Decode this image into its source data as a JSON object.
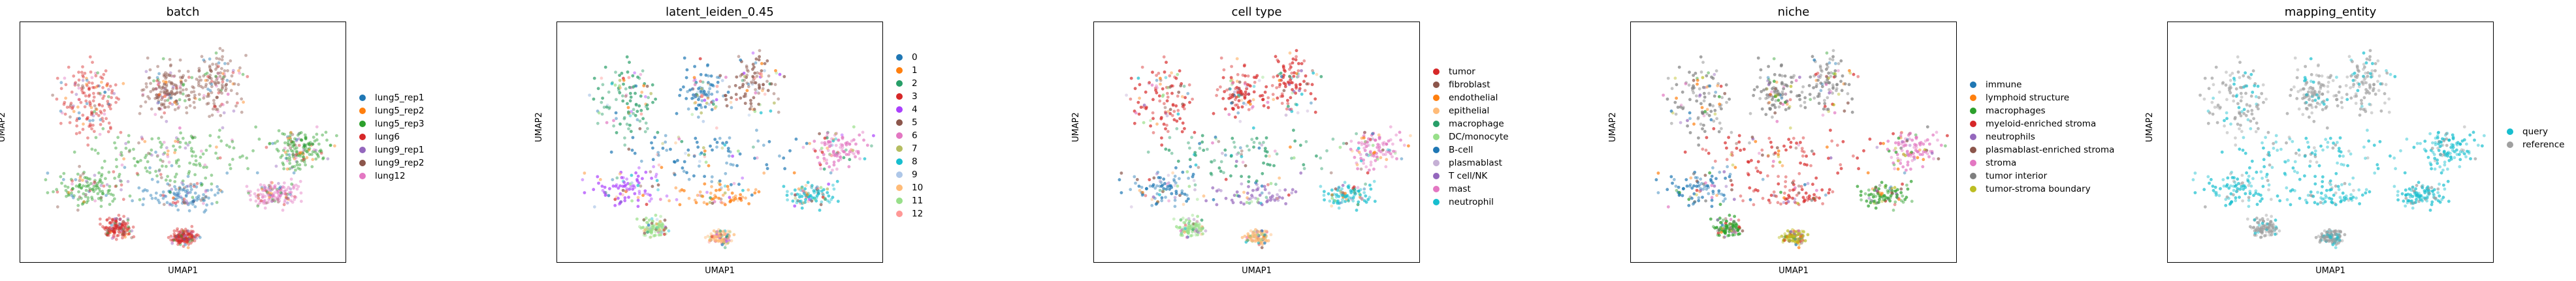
{
  "chart_data": [
    {
      "type": "scatter",
      "title": "batch",
      "xlabel": "UMAP1",
      "ylabel": "UMAP2",
      "legend_position": "right",
      "series": [
        {
          "name": "lung5_rep1",
          "color": "#1f77b4"
        },
        {
          "name": "lung5_rep2",
          "color": "#ff7f0e"
        },
        {
          "name": "lung5_rep3",
          "color": "#2ca02c"
        },
        {
          "name": "lung6",
          "color": "#d62728"
        },
        {
          "name": "lung9_rep1",
          "color": "#9467bd"
        },
        {
          "name": "lung9_rep2",
          "color": "#8c564b"
        },
        {
          "name": "lung12",
          "color": "#e377c2"
        }
      ]
    },
    {
      "type": "scatter",
      "title": "latent_leiden_0.45",
      "xlabel": "UMAP1",
      "ylabel": "UMAP2",
      "legend_position": "right",
      "series": [
        {
          "name": "0",
          "color": "#1f77b4"
        },
        {
          "name": "1",
          "color": "#ff7f0e"
        },
        {
          "name": "2",
          "color": "#279e68"
        },
        {
          "name": "3",
          "color": "#d62728"
        },
        {
          "name": "4",
          "color": "#aa40fc"
        },
        {
          "name": "5",
          "color": "#8c564b"
        },
        {
          "name": "6",
          "color": "#e377c2"
        },
        {
          "name": "7",
          "color": "#b5bd61"
        },
        {
          "name": "8",
          "color": "#17becf"
        },
        {
          "name": "9",
          "color": "#aec7e8"
        },
        {
          "name": "10",
          "color": "#ffbb78"
        },
        {
          "name": "11",
          "color": "#98df8a"
        },
        {
          "name": "12",
          "color": "#ff9896"
        }
      ]
    },
    {
      "type": "scatter",
      "title": "cell type",
      "xlabel": "UMAP1",
      "ylabel": "UMAP2",
      "legend_position": "right",
      "series": [
        {
          "name": "tumor",
          "color": "#d62728"
        },
        {
          "name": "fibroblast",
          "color": "#8c564b"
        },
        {
          "name": "endothelial",
          "color": "#ff7f0e"
        },
        {
          "name": "epithelial",
          "color": "#ffbb78"
        },
        {
          "name": "macrophage",
          "color": "#279e68"
        },
        {
          "name": "DC/monocyte",
          "color": "#98df8a"
        },
        {
          "name": "B-cell",
          "color": "#1f77b4"
        },
        {
          "name": "plasmablast",
          "color": "#c5b0d5"
        },
        {
          "name": "T cell/NK",
          "color": "#9467bd"
        },
        {
          "name": "mast",
          "color": "#e377c2"
        },
        {
          "name": "neutrophil",
          "color": "#17becf"
        }
      ]
    },
    {
      "type": "scatter",
      "title": "niche",
      "xlabel": "UMAP1",
      "ylabel": "UMAP2",
      "legend_position": "right",
      "series": [
        {
          "name": "immune",
          "color": "#1f77b4"
        },
        {
          "name": "lymphoid structure",
          "color": "#ff7f0e"
        },
        {
          "name": "macrophages",
          "color": "#2ca02c"
        },
        {
          "name": "myeloid-enriched stroma",
          "color": "#d62728"
        },
        {
          "name": "neutrophils",
          "color": "#9467bd"
        },
        {
          "name": "plasmablast-enriched stroma",
          "color": "#8c564b"
        },
        {
          "name": "stroma",
          "color": "#e377c2"
        },
        {
          "name": "tumor interior",
          "color": "#7f7f7f"
        },
        {
          "name": "tumor-stroma boundary",
          "color": "#bcbd22"
        }
      ]
    },
    {
      "type": "scatter",
      "title": "mapping_entity",
      "xlabel": "UMAP1",
      "ylabel": "UMAP2",
      "legend_position": "right",
      "series": [
        {
          "name": "query",
          "color": "#17becf"
        },
        {
          "name": "reference",
          "color": "#a0a0a0"
        }
      ]
    }
  ]
}
